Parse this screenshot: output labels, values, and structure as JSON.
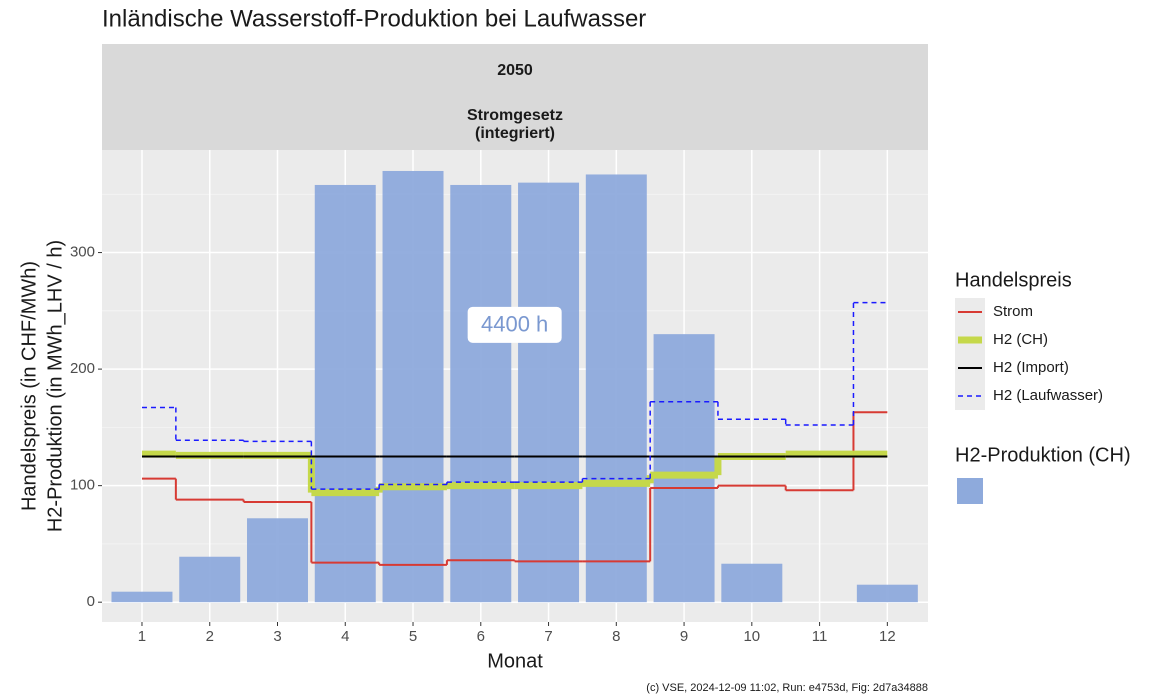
{
  "chart_data": {
    "type": "combo",
    "title": "Inländische Wasserstoff-Produktion bei Laufwasser",
    "strip": {
      "row": "2050",
      "col": [
        "Stromgesetz",
        "(integriert)"
      ]
    },
    "xlabel": "Monat",
    "ylabel": [
      "Handelspreis (in CHF/MWh)",
      "H2-Produktion (in MWh_LHV / h)"
    ],
    "x": [
      1,
      2,
      3,
      4,
      5,
      6,
      7,
      8,
      9,
      10,
      11,
      12
    ],
    "xlim": [
      0.41,
      12.6
    ],
    "xticks": [
      1,
      2,
      3,
      4,
      5,
      6,
      7,
      8,
      9,
      10,
      11,
      12
    ],
    "ylim": [
      -17,
      388
    ],
    "yticks": [
      0,
      100,
      200,
      300
    ],
    "yminor": [
      50,
      150,
      250,
      350
    ],
    "grid": true,
    "annotation": "4400 h",
    "legend_title": "Handelspreis",
    "legend_position": "right",
    "series": [
      {
        "name": "H2-Produktion (CH)",
        "type": "bar",
        "color": "#8eaadc",
        "values": [
          9,
          39,
          72,
          358,
          370,
          358,
          360,
          367,
          230,
          33,
          0,
          15
        ]
      },
      {
        "name": "Strom",
        "type": "step",
        "style": "solid",
        "color": "#d73a33",
        "values": [
          106,
          88,
          86,
          34,
          32,
          36,
          35,
          35,
          98,
          100,
          96,
          163
        ]
      },
      {
        "name": "H2 (CH)",
        "type": "step",
        "style": "thick",
        "color": "#c5d84a",
        "values": [
          127,
          126,
          126,
          94,
          99,
          100,
          100,
          102,
          109,
          125,
          127,
          127
        ]
      },
      {
        "name": "H2 (Import)",
        "type": "step",
        "style": "solid",
        "color": "#000000",
        "values": [
          125,
          125,
          125,
          125,
          125,
          125,
          125,
          125,
          125,
          125,
          125,
          125
        ]
      },
      {
        "name": "H2 (Laufwasser)",
        "type": "step",
        "style": "dashed",
        "color": "#1a1aff",
        "values": [
          167,
          139,
          138,
          97,
          101,
          103,
          103,
          106,
          172,
          157,
          152,
          257
        ]
      }
    ],
    "caption": "(c) VSE, 2024-12-09 11:02, Run: e4753d, Fig: 2d7a34888"
  }
}
